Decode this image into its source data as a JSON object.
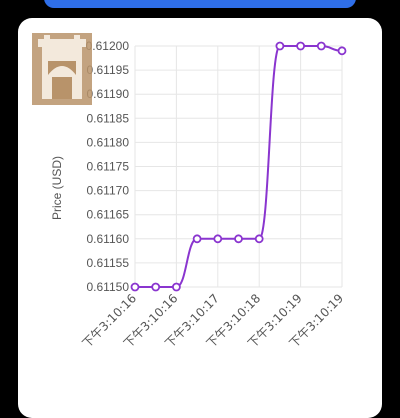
{
  "colors": {
    "background": "#000000",
    "top_button": "#2f6fe9",
    "card": "#ffffff",
    "line": "#8a35cf",
    "grid": "#e6e6e6",
    "text": "#555555",
    "watermark": "#b8936a"
  },
  "watermark": {
    "type": "logo",
    "icon": "gate-icon"
  },
  "chart_data": {
    "type": "line",
    "ylabel": "Price (USD)",
    "xlabel": "",
    "ylim": [
      0.6115,
      0.612
    ],
    "yticks": [
      "0.61150",
      "0.61155",
      "0.61160",
      "0.61165",
      "0.61170",
      "0.61175",
      "0.61180",
      "0.61185",
      "0.61190",
      "0.61195",
      "0.61200"
    ],
    "xticks": [
      "下午3:10:16",
      "下午3:10:16",
      "下午3:10:17",
      "下午3:10:18",
      "下午3:10:19",
      "下午3:10:19"
    ],
    "grid": true,
    "series": [
      {
        "values": [
          0.6115,
          0.6115,
          0.6115,
          0.6116,
          0.6116,
          0.6116,
          0.6116,
          0.612,
          0.612,
          0.612,
          0.61199
        ]
      }
    ]
  }
}
